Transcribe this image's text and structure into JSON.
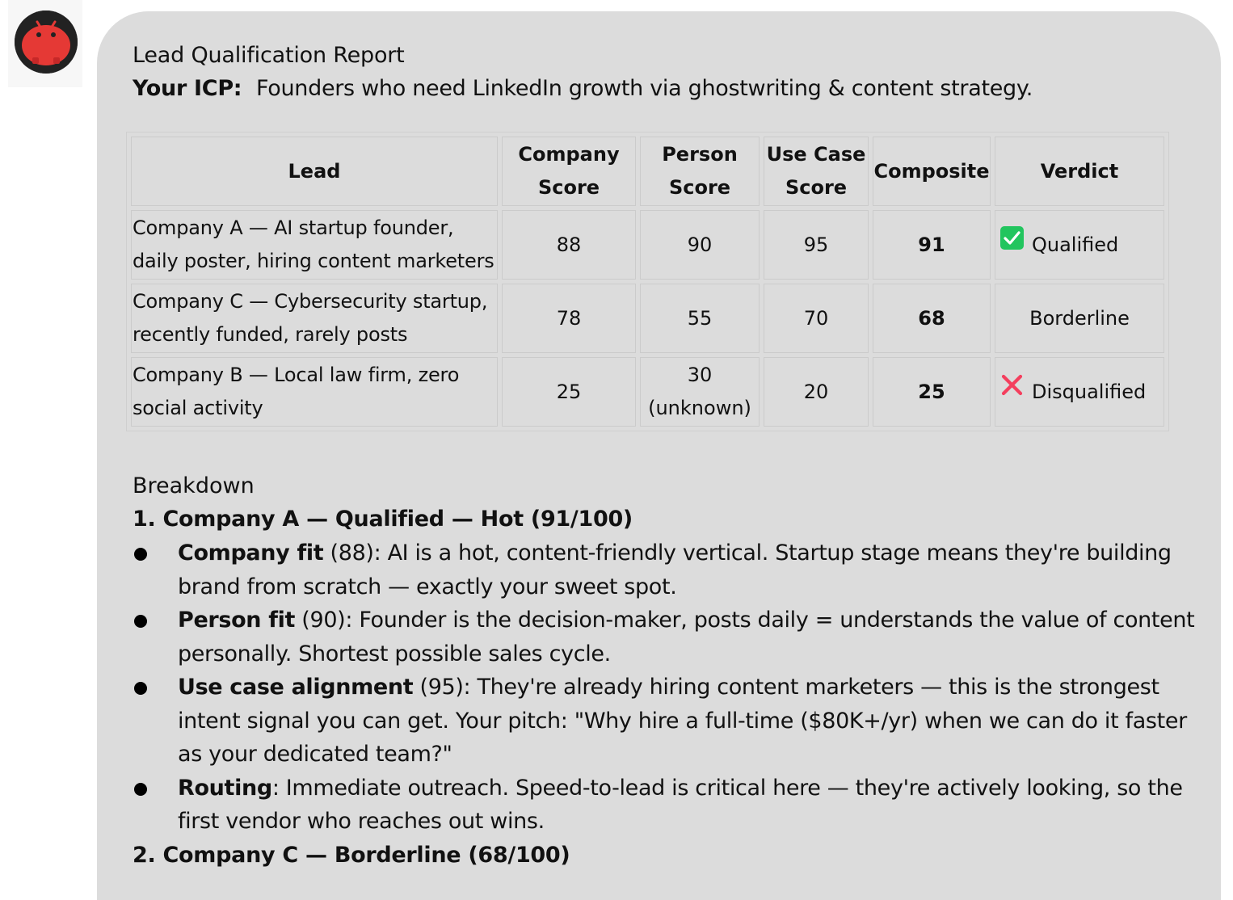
{
  "avatar": {
    "icon": "red-robot-avatar-icon",
    "accent": "#e53935"
  },
  "report": {
    "title": "Lead Qualification Report",
    "icp_label": "Your ICP:",
    "icp_text": "Founders who need LinkedIn growth via ghostwriting & content strategy."
  },
  "table": {
    "headers": {
      "lead": "Lead",
      "company_1": "Company",
      "company_2": "Score",
      "person_1": "Person",
      "person_2": "Score",
      "usecase_1": "Use Case",
      "usecase_2": "Score",
      "composite": "Composite",
      "verdict": "Verdict"
    },
    "rows": [
      {
        "lead_1": "Company A — AI startup founder,",
        "lead_2": "daily poster, hiring content marketers",
        "company": "88",
        "person_1": "90",
        "person_2": "",
        "usecase": "95",
        "composite": "91",
        "verdict": "Qualified",
        "verdict_icon": "green-check-icon"
      },
      {
        "lead_1": "Company C — Cybersecurity startup,",
        "lead_2": "recently funded, rarely posts",
        "company": "78",
        "person_1": "55",
        "person_2": "",
        "usecase": "70",
        "composite": "68",
        "verdict": "Borderline",
        "verdict_icon": ""
      },
      {
        "lead_1": "Company B — Local law firm, zero",
        "lead_2": "social activity",
        "company": "25",
        "person_1": "30",
        "person_2": "(unknown)",
        "usecase": "20",
        "composite": "25",
        "verdict": "Disqualified",
        "verdict_icon": "red-x-icon"
      }
    ]
  },
  "breakdown": {
    "title": "Breakdown",
    "section_1_title": "1. Company A — Qualified — Hot (91/100)",
    "bullets": [
      {
        "bold": "Company fit",
        "text": " (88): AI is a hot, content-friendly vertical. Startup stage means they're building brand from scratch — exactly your sweet spot."
      },
      {
        "bold": "Person fit",
        "text": " (90): Founder is the decision-maker, posts daily = understands the value of content personally. Shortest possible sales cycle."
      },
      {
        "bold": "Use case alignment",
        "text": " (95): They're already hiring content marketers — this is the strongest intent signal you can get. Your pitch: \"Why hire a full-time ($80K+/yr) when we can do it faster as your dedicated team?\""
      },
      {
        "bold": "Routing",
        "text": ": Immediate outreach. Speed-to-lead is critical here — they're actively looking, so the first vendor who reaches out wins."
      }
    ],
    "section_2_title": "2. Company C — Borderline (68/100)"
  },
  "colors": {
    "bubble": "#dcdcdc",
    "check": "#22c55e",
    "cross": "#f43f5e"
  }
}
